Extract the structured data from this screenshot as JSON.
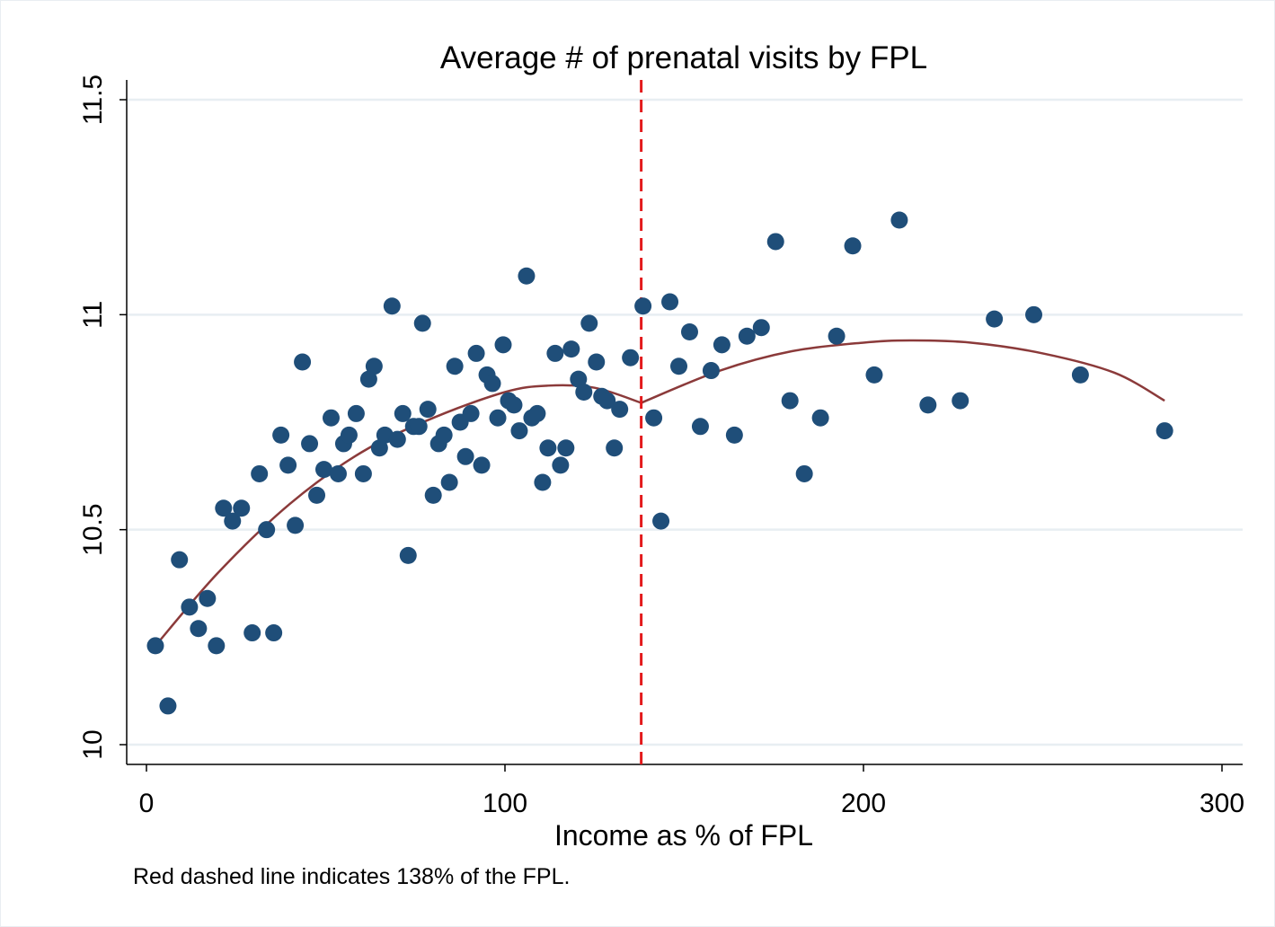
{
  "chart_data": {
    "type": "scatter",
    "title": "Average # of prenatal visits by FPL",
    "xlabel": "Income as % of FPL",
    "ylabel": "",
    "note": "Red dashed line indicates 138% of the FPL.",
    "xlim": [
      -5,
      305
    ],
    "ylim": [
      10,
      11.5
    ],
    "xticks": [
      0,
      100,
      200,
      300
    ],
    "xtick_labels": [
      "0",
      "100",
      "200",
      "300"
    ],
    "yticks": [
      10,
      10.5,
      11,
      11.5
    ],
    "ytick_labels": [
      "10",
      "10.5",
      "11",
      "11.5"
    ],
    "grid": true,
    "cutoff_x": 138,
    "colors": {
      "points": "#1f4e79",
      "fit": "#8b3a3a",
      "cutoff": "#e31a1c",
      "grid": "#e8eef2",
      "axis": "#000000"
    },
    "points": [
      {
        "x": 2.5,
        "y": 10.23
      },
      {
        "x": 6.0,
        "y": 10.09
      },
      {
        "x": 9.2,
        "y": 10.43
      },
      {
        "x": 12.0,
        "y": 10.32
      },
      {
        "x": 14.5,
        "y": 10.27
      },
      {
        "x": 17.0,
        "y": 10.34
      },
      {
        "x": 19.5,
        "y": 10.23
      },
      {
        "x": 21.5,
        "y": 10.55
      },
      {
        "x": 24.0,
        "y": 10.52
      },
      {
        "x": 26.5,
        "y": 10.55
      },
      {
        "x": 29.5,
        "y": 10.26
      },
      {
        "x": 31.5,
        "y": 10.63
      },
      {
        "x": 33.5,
        "y": 10.5
      },
      {
        "x": 35.5,
        "y": 10.26
      },
      {
        "x": 37.5,
        "y": 10.72
      },
      {
        "x": 39.5,
        "y": 10.65
      },
      {
        "x": 41.5,
        "y": 10.51
      },
      {
        "x": 43.5,
        "y": 10.89
      },
      {
        "x": 45.5,
        "y": 10.7
      },
      {
        "x": 47.5,
        "y": 10.58
      },
      {
        "x": 49.5,
        "y": 10.64
      },
      {
        "x": 51.5,
        "y": 10.76
      },
      {
        "x": 53.5,
        "y": 10.63
      },
      {
        "x": 55.0,
        "y": 10.7
      },
      {
        "x": 56.5,
        "y": 10.72
      },
      {
        "x": 58.5,
        "y": 10.77
      },
      {
        "x": 60.5,
        "y": 10.63
      },
      {
        "x": 62.0,
        "y": 10.85
      },
      {
        "x": 63.5,
        "y": 10.88
      },
      {
        "x": 65.0,
        "y": 10.69
      },
      {
        "x": 66.5,
        "y": 10.72
      },
      {
        "x": 68.5,
        "y": 11.02
      },
      {
        "x": 70.0,
        "y": 10.71
      },
      {
        "x": 71.5,
        "y": 10.77
      },
      {
        "x": 73.0,
        "y": 10.44
      },
      {
        "x": 74.5,
        "y": 10.74
      },
      {
        "x": 76.0,
        "y": 10.74
      },
      {
        "x": 77.0,
        "y": 10.98
      },
      {
        "x": 78.5,
        "y": 10.78
      },
      {
        "x": 80.0,
        "y": 10.58
      },
      {
        "x": 81.5,
        "y": 10.7
      },
      {
        "x": 83.0,
        "y": 10.72
      },
      {
        "x": 84.5,
        "y": 10.61
      },
      {
        "x": 86.0,
        "y": 10.88
      },
      {
        "x": 87.5,
        "y": 10.75
      },
      {
        "x": 89.0,
        "y": 10.67
      },
      {
        "x": 90.5,
        "y": 10.77
      },
      {
        "x": 92.0,
        "y": 10.91
      },
      {
        "x": 93.5,
        "y": 10.65
      },
      {
        "x": 95.0,
        "y": 10.86
      },
      {
        "x": 96.5,
        "y": 10.84
      },
      {
        "x": 98.0,
        "y": 10.76
      },
      {
        "x": 99.5,
        "y": 10.93
      },
      {
        "x": 101.0,
        "y": 10.8
      },
      {
        "x": 102.5,
        "y": 10.79
      },
      {
        "x": 104.0,
        "y": 10.73
      },
      {
        "x": 106.0,
        "y": 11.09
      },
      {
        "x": 107.5,
        "y": 10.76
      },
      {
        "x": 109.0,
        "y": 10.77
      },
      {
        "x": 110.5,
        "y": 10.61
      },
      {
        "x": 112.0,
        "y": 10.69
      },
      {
        "x": 114.0,
        "y": 10.91
      },
      {
        "x": 115.5,
        "y": 10.65
      },
      {
        "x": 117.0,
        "y": 10.69
      },
      {
        "x": 118.5,
        "y": 10.92
      },
      {
        "x": 120.5,
        "y": 10.85
      },
      {
        "x": 122.0,
        "y": 10.82
      },
      {
        "x": 123.5,
        "y": 10.98
      },
      {
        "x": 125.5,
        "y": 10.89
      },
      {
        "x": 127.0,
        "y": 10.81
      },
      {
        "x": 128.5,
        "y": 10.8
      },
      {
        "x": 130.5,
        "y": 10.69
      },
      {
        "x": 132.0,
        "y": 10.78
      },
      {
        "x": 135.0,
        "y": 10.9
      },
      {
        "x": 138.5,
        "y": 11.02
      },
      {
        "x": 141.5,
        "y": 10.76
      },
      {
        "x": 143.5,
        "y": 10.52
      },
      {
        "x": 146.0,
        "y": 11.03
      },
      {
        "x": 148.5,
        "y": 10.88
      },
      {
        "x": 151.5,
        "y": 10.96
      },
      {
        "x": 154.5,
        "y": 10.74
      },
      {
        "x": 157.5,
        "y": 10.87
      },
      {
        "x": 160.5,
        "y": 10.93
      },
      {
        "x": 164.0,
        "y": 10.72
      },
      {
        "x": 167.5,
        "y": 10.95
      },
      {
        "x": 171.5,
        "y": 10.97
      },
      {
        "x": 175.5,
        "y": 11.17
      },
      {
        "x": 179.5,
        "y": 10.8
      },
      {
        "x": 183.5,
        "y": 10.63
      },
      {
        "x": 188.0,
        "y": 10.76
      },
      {
        "x": 192.5,
        "y": 10.95
      },
      {
        "x": 197.0,
        "y": 11.16
      },
      {
        "x": 203.0,
        "y": 10.86
      },
      {
        "x": 210.0,
        "y": 11.22
      },
      {
        "x": 218.0,
        "y": 10.79
      },
      {
        "x": 227.0,
        "y": 10.8
      },
      {
        "x": 236.5,
        "y": 10.99
      },
      {
        "x": 247.5,
        "y": 11.0
      },
      {
        "x": 260.5,
        "y": 10.86
      },
      {
        "x": 284.0,
        "y": 10.73
      }
    ],
    "fits": [
      {
        "domain": [
          2.5,
          138
        ],
        "points": [
          [
            2.5,
            10.23
          ],
          [
            20,
            10.4
          ],
          [
            40,
            10.56
          ],
          [
            60,
            10.68
          ],
          [
            80,
            10.76
          ],
          [
            100,
            10.82
          ],
          [
            112,
            10.835
          ],
          [
            125,
            10.83
          ],
          [
            138,
            10.795
          ]
        ]
      },
      {
        "domain": [
          138,
          284
        ],
        "points": [
          [
            138,
            10.795
          ],
          [
            160,
            10.87
          ],
          [
            180,
            10.915
          ],
          [
            200,
            10.935
          ],
          [
            213,
            10.94
          ],
          [
            230,
            10.935
          ],
          [
            250,
            10.91
          ],
          [
            270,
            10.865
          ],
          [
            284,
            10.8
          ]
        ]
      }
    ]
  }
}
